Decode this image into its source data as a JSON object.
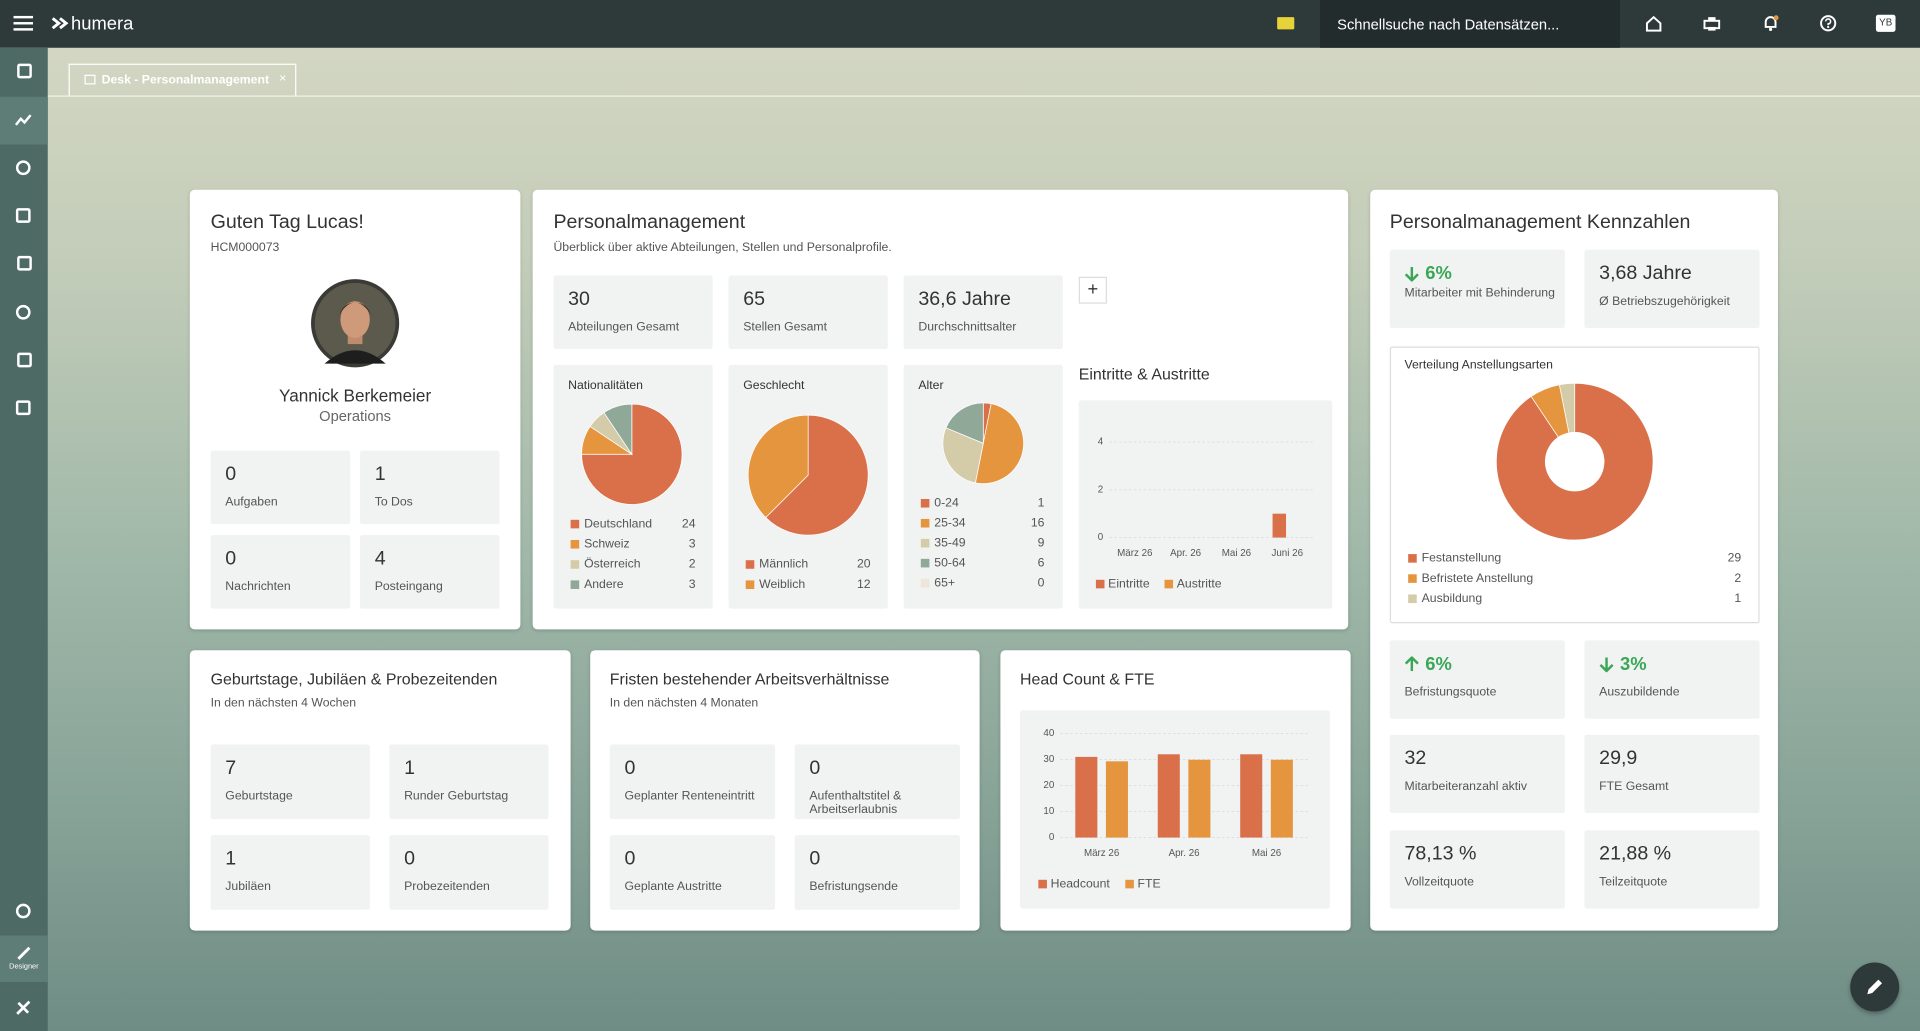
{
  "header": {
    "brand": "humera",
    "search": "Schnellsuche nach Datensätzen...",
    "user": "YB"
  },
  "sidebar": {
    "designer": "Designer"
  },
  "tab": "Desk - Personalmanagement",
  "welcome": {
    "title": "Guten Tag Lucas!",
    "id": "HCM000073",
    "name": "Yannick Berkemeier",
    "department": "Operations",
    "stats": [
      {
        "value": 0,
        "label": "Aufgaben"
      },
      {
        "value": 1,
        "label": "To Dos"
      },
      {
        "value": 0,
        "label": "Nachrichten"
      },
      {
        "value": 4,
        "label": "Posteingang"
      }
    ]
  },
  "personal": {
    "title": "Personalmanagement",
    "subtitle": "Überblick über aktive Abteilungen, Stellen und Personalprofile.",
    "kpis": [
      {
        "value": 30,
        "label": "Abteilungen Gesamt"
      },
      {
        "value": 65,
        "label": "Stellen Gesamt"
      },
      {
        "value": "36,6 Jahre",
        "label": "Durchschnittsalter"
      }
    ],
    "charts": [
      {
        "type": "pie",
        "title": "Nationalitäten",
        "categories": [
          "Deutschland",
          "Schweiz",
          "Österreich",
          "Andere"
        ],
        "values": [
          24,
          3,
          2,
          3
        ],
        "colors": [
          "#d9704a",
          "#e6953f",
          "#d4cba8",
          "#8fa898"
        ]
      },
      {
        "type": "pie",
        "title": "Geschlecht",
        "categories": [
          "Männlich",
          "Weiblich"
        ],
        "values": [
          20,
          12
        ],
        "colors": [
          "#d9704a",
          "#e6953f"
        ]
      },
      {
        "type": "pie",
        "title": "Alter",
        "categories": [
          "0-24",
          "25-34",
          "35-49",
          "50-64",
          "65+"
        ],
        "values": [
          1,
          16,
          9,
          6,
          0
        ],
        "colors": [
          "#d9704a",
          "#e6953f",
          "#d4cba8",
          "#8fa898",
          "#efe6da"
        ]
      },
      {
        "type": "bar",
        "title": "Eintritte & Austritte",
        "categories": [
          "März 26",
          "Apr. 26",
          "Mai 26",
          "Juni 26"
        ],
        "series": [
          {
            "name": "Eintritte",
            "color": "#d9704a",
            "values": [
              0,
              0,
              0,
              1
            ]
          },
          {
            "name": "Austritte",
            "color": "#e6953f",
            "values": [
              0,
              0,
              0,
              0
            ]
          }
        ],
        "ylim": [
          0,
          5
        ],
        "yticks": [
          0,
          2,
          4
        ],
        "grid": true
      }
    ]
  },
  "kennzahlen": {
    "title": "Personalmanagement Kennzahlen",
    "kpis": [
      {
        "value": "6%",
        "label": "Mitarbeiter mit Behinderung"
      },
      {
        "value": "3,68 Jahre",
        "label": "Ø Betriebszugehörigkeit"
      },
      {
        "value": "6%",
        "label": "Befristungsquote"
      },
      {
        "value": "3%",
        "label": "Auszubildende"
      },
      {
        "value": 32,
        "label": "Mitarbeiteranzahl aktiv"
      },
      {
        "value": "29,9",
        "label": "FTE Gesamt"
      },
      {
        "value": "78,13 %",
        "label": "Vollzeitquote"
      },
      {
        "value": "21,88 %",
        "label": "Teilzeitquote"
      }
    ],
    "chart": {
      "type": "donut",
      "title": "Verteilung Anstellungsarten",
      "categories": [
        "Festanstellung",
        "Befristete Anstellung",
        "Ausbildung"
      ],
      "values": [
        29,
        2,
        1
      ],
      "colors": [
        "#d9704a",
        "#e6953f",
        "#d4cba8"
      ]
    }
  },
  "birthdays": {
    "title": "Geburtstage, Jubiläen & Probezeitenden",
    "subtitle": "In den nächsten 4 Wochen",
    "stats": [
      {
        "value": 7,
        "label": "Geburtstage"
      },
      {
        "value": 1,
        "label": "Runder Geburtstag"
      },
      {
        "value": 1,
        "label": "Jubiläen"
      },
      {
        "value": 0,
        "label": "Probezeitenden"
      }
    ]
  },
  "deadlines": {
    "title": "Fristen bestehender Arbeitsverhältnisse",
    "subtitle": "In den nächsten 4 Monaten",
    "stats": [
      {
        "value": 0,
        "label": "Geplanter Renteneintritt"
      },
      {
        "value": 0,
        "label": "Aufenthaltstitel & Arbeitserlaubnis"
      },
      {
        "value": 0,
        "label": "Geplante Austritte"
      },
      {
        "value": 0,
        "label": "Befristungsende"
      }
    ]
  },
  "headcount": {
    "chart": {
      "type": "bar",
      "title": "Head Count & FTE",
      "categories": [
        "März 26",
        "Apr. 26",
        "Mai 26"
      ],
      "series": [
        {
          "name": "Headcount",
          "color": "#d9704a",
          "values": [
            31,
            32,
            32
          ]
        },
        {
          "name": "FTE",
          "color": "#e6953f",
          "values": [
            29.3,
            29.9,
            29.9
          ]
        }
      ],
      "ylim": [
        0,
        40
      ],
      "yticks": [
        0,
        10,
        20,
        30,
        40
      ],
      "grid": true
    }
  }
}
